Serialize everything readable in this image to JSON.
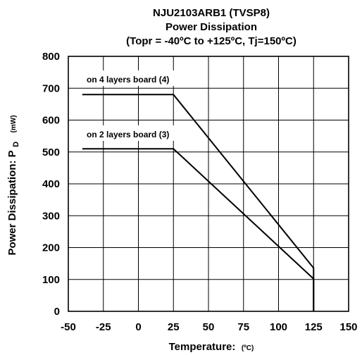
{
  "chart_data": {
    "type": "line",
    "title_lines": [
      "NJU2103ARB1 (TVSP8)",
      "Power Dissipation",
      "(Topr = -40ºC to +125ºC, Tj=150ºC)"
    ],
    "xlabel": "Temperature:",
    "xlabel_unit": "(ºC)",
    "ylabel": "Power Dissipation: P",
    "ylabel_subscript": "D",
    "ylabel_unit": "(mW)",
    "xlim": [
      -50,
      150
    ],
    "ylim": [
      0,
      800
    ],
    "x_ticks": [
      -50,
      -25,
      0,
      25,
      50,
      75,
      100,
      125,
      150
    ],
    "y_ticks": [
      0,
      100,
      200,
      300,
      400,
      500,
      600,
      700,
      800
    ],
    "x_tick_labels": [
      "-50",
      "-25",
      "0",
      "25",
      "50",
      "75",
      "100",
      "125",
      "150"
    ],
    "y_tick_labels": [
      "0",
      "100",
      "200",
      "300",
      "400",
      "500",
      "600",
      "700",
      "800"
    ],
    "grid": true,
    "series": [
      {
        "name": "on 4 layers board (4)",
        "points": [
          [
            -40,
            680
          ],
          [
            25,
            680
          ],
          [
            125,
            136
          ],
          [
            125,
            0
          ]
        ]
      },
      {
        "name": "on 2 layers board (3)",
        "points": [
          [
            -40,
            510
          ],
          [
            25,
            510
          ],
          [
            125,
            102
          ],
          [
            125,
            0
          ]
        ]
      }
    ]
  }
}
